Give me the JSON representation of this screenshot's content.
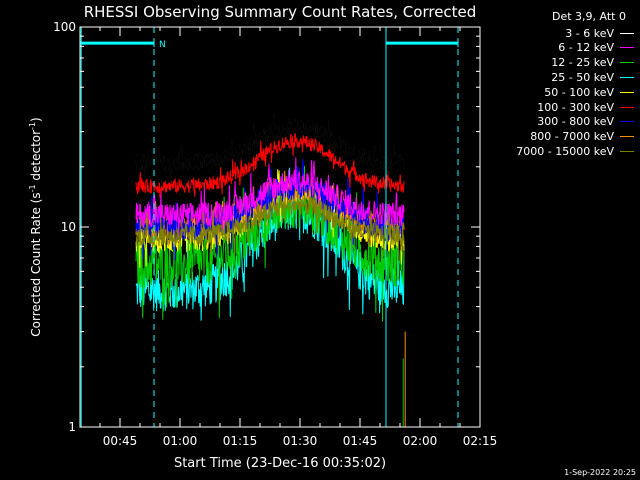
{
  "chart_data": {
    "type": "line",
    "title": "RHESSI Observing Summary Count Rates, Corrected",
    "xlabel": "Start Time (23-Dec-16 00:35:02)",
    "ylabel_pre": "Corrected Count Rate (s",
    "ylabel_sup": "-1",
    "ylabel_post": " detector",
    "ylabel_sup2": "-1",
    "ylabel_end": ")",
    "y_scale": "log",
    "ylim": [
      1,
      100
    ],
    "y_ticks": [
      {
        "value": 1,
        "label": "1"
      },
      {
        "value": 10,
        "label": "10"
      },
      {
        "value": 100,
        "label": "100"
      }
    ],
    "xlim_minutes": [
      35.0,
      135.0
    ],
    "x_ticks": [
      {
        "minute": 45,
        "label": "00:45"
      },
      {
        "minute": 60,
        "label": "01:00"
      },
      {
        "minute": 75,
        "label": "01:15"
      },
      {
        "minute": 90,
        "label": "01:30"
      },
      {
        "minute": 105,
        "label": "01:45"
      },
      {
        "minute": 120,
        "label": "02:00"
      },
      {
        "minute": 135,
        "label": "02:15"
      }
    ],
    "data_range_minutes": [
      49.0,
      116.0
    ],
    "bars": [
      {
        "x0": 35.0,
        "x1": 53.5,
        "y": 83,
        "label": "N",
        "color": "#00ffff"
      },
      {
        "x0": 111.5,
        "x1": 129.5,
        "y": 83,
        "label": "",
        "color": "#00ffff"
      }
    ],
    "vlines_solid": [
      35.3,
      111.5
    ],
    "vlines_dashed": [
      53.5,
      129.5
    ],
    "series": [
      {
        "name": "3 - 6 keV",
        "color": "#000000",
        "baseline": 21,
        "peak": 32,
        "noise": 0.1
      },
      {
        "name": "6 - 12 keV",
        "color": "#ff00ff",
        "baseline": 11.5,
        "peak": 17,
        "noise": 0.14
      },
      {
        "name": "12 - 25 keV",
        "color": "#00cc00",
        "baseline": 6.5,
        "peak": 13,
        "noise": 0.28
      },
      {
        "name": "25 - 50 keV",
        "color": "#00ffff",
        "baseline": 4.8,
        "peak": 12,
        "noise": 0.24
      },
      {
        "name": "50 - 100 keV",
        "color": "#ffff00",
        "baseline": 8.5,
        "peak": 15,
        "noise": 0.14
      },
      {
        "name": "100 - 300 keV",
        "color": "#ff0000",
        "baseline": 16,
        "peak": 27,
        "noise": 0.08
      },
      {
        "name": "300 - 800 keV",
        "color": "#0000ff",
        "baseline": 10,
        "peak": 16,
        "noise": 0.16
      },
      {
        "name": "800 - 7000 keV",
        "color": "#ff8c00",
        "baseline": 10,
        "peak": 15,
        "noise": 0.12
      },
      {
        "name": "7000 - 15000 keV",
        "color": "#808000",
        "baseline": 9,
        "peak": 13,
        "noise": 0.12
      }
    ]
  },
  "legend": {
    "title": "Det 3,9, Att 0"
  },
  "footer": {
    "date": "1-Sep-2022 20:25"
  }
}
